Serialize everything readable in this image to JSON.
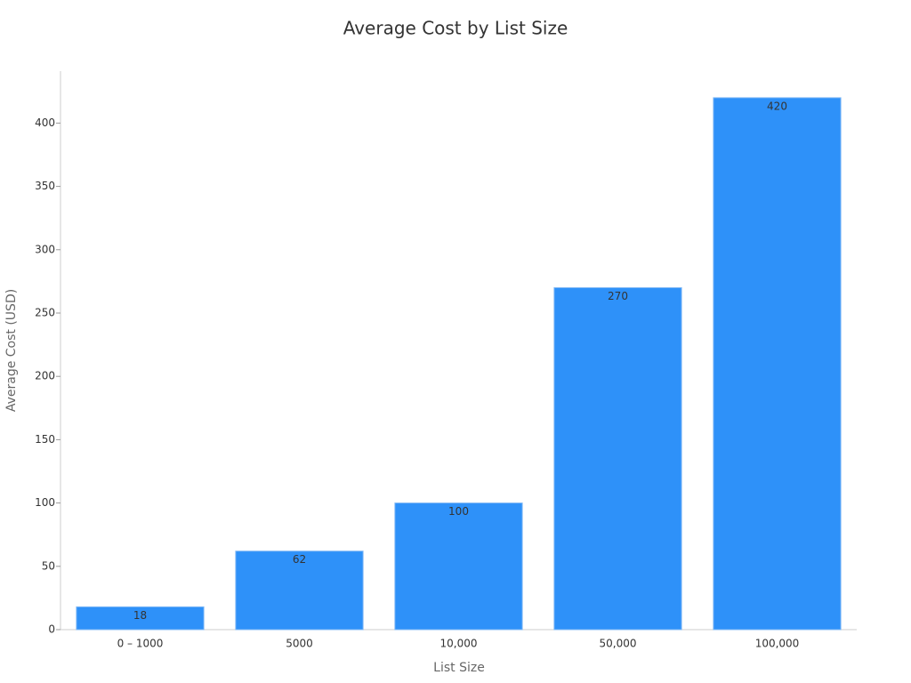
{
  "chart_data": {
    "type": "bar",
    "title": "Average Cost by List Size",
    "x_label": "List Size",
    "y_label": "Average Cost (USD)",
    "categories": [
      "0 – 1000",
      "5000",
      "10,000",
      "50,000",
      "100,000"
    ],
    "values": [
      18,
      62,
      100,
      270,
      420
    ],
    "color": "#2e91f9",
    "ylim": [
      0,
      441
    ],
    "yticks": [
      0,
      50,
      100,
      150,
      200,
      250,
      300,
      350,
      400
    ],
    "grid": false
  }
}
